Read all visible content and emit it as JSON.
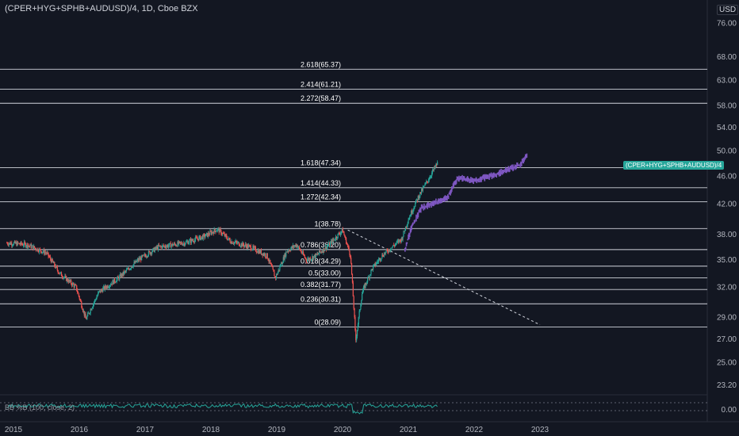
{
  "header": {
    "title": "(CPER+HYG+SPHB+AUDUSD)/4, 1D, Cboe BZX",
    "currency": "USD"
  },
  "indicator": {
    "label": "BB %B (100, close, 2)",
    "value_tick": "0.00"
  },
  "last_price_tag": "(CPER+HYG+SPHB+AUDUSD)/4",
  "colors": {
    "background": "#131722",
    "candle_up": "#26a69a",
    "candle_down": "#ef5350",
    "projection": "#7e57c2",
    "fib_line": "#d1d4dc",
    "indicator_line": "#26a69a"
  },
  "chart_data": {
    "type": "candlestick",
    "y_scale": "log",
    "ylim": [
      22.5,
      82
    ],
    "y_ticks": [
      "76.00",
      "68.00",
      "63.00",
      "58.00",
      "54.00",
      "50.00",
      "46.00",
      "42.00",
      "38.00",
      "35.00",
      "32.00",
      "29.00",
      "27.00",
      "25.00",
      "23.20"
    ],
    "x_ticks": [
      "2015",
      "2016",
      "2017",
      "2018",
      "2019",
      "2020",
      "2021",
      "2022",
      "2023"
    ],
    "price_path": [
      {
        "t": 2014.9,
        "v": 37.0
      },
      {
        "t": 2015.2,
        "v": 36.8
      },
      {
        "t": 2015.5,
        "v": 35.8
      },
      {
        "t": 2015.7,
        "v": 33.5
      },
      {
        "t": 2015.95,
        "v": 32.0
      },
      {
        "t": 2016.1,
        "v": 28.8
      },
      {
        "t": 2016.3,
        "v": 31.5
      },
      {
        "t": 2016.6,
        "v": 33.0
      },
      {
        "t": 2016.9,
        "v": 35.0
      },
      {
        "t": 2017.2,
        "v": 36.5
      },
      {
        "t": 2017.6,
        "v": 37.0
      },
      {
        "t": 2017.9,
        "v": 37.8
      },
      {
        "t": 2018.1,
        "v": 38.7
      },
      {
        "t": 2018.3,
        "v": 37.2
      },
      {
        "t": 2018.6,
        "v": 36.5
      },
      {
        "t": 2018.85,
        "v": 35.5
      },
      {
        "t": 2018.98,
        "v": 33.0
      },
      {
        "t": 2019.15,
        "v": 36.0
      },
      {
        "t": 2019.3,
        "v": 36.8
      },
      {
        "t": 2019.45,
        "v": 35.0
      },
      {
        "t": 2019.6,
        "v": 35.5
      },
      {
        "t": 2019.8,
        "v": 36.8
      },
      {
        "t": 2020.0,
        "v": 38.6
      },
      {
        "t": 2020.12,
        "v": 35.5
      },
      {
        "t": 2020.2,
        "v": 26.8
      },
      {
        "t": 2020.3,
        "v": 31.5
      },
      {
        "t": 2020.45,
        "v": 34.0
      },
      {
        "t": 2020.6,
        "v": 35.5
      },
      {
        "t": 2020.75,
        "v": 36.5
      },
      {
        "t": 2020.9,
        "v": 37.5
      },
      {
        "t": 2021.0,
        "v": 40.0
      },
      {
        "t": 2021.15,
        "v": 43.0
      },
      {
        "t": 2021.3,
        "v": 45.5
      },
      {
        "t": 2021.45,
        "v": 48.2
      }
    ],
    "projection_path": [
      {
        "t": 2020.95,
        "v": 36.2
      },
      {
        "t": 2021.05,
        "v": 39.0
      },
      {
        "t": 2021.2,
        "v": 41.5
      },
      {
        "t": 2021.4,
        "v": 42.2
      },
      {
        "t": 2021.6,
        "v": 43.0
      },
      {
        "t": 2021.75,
        "v": 45.8
      },
      {
        "t": 2022.0,
        "v": 45.4
      },
      {
        "t": 2022.3,
        "v": 46.2
      },
      {
        "t": 2022.5,
        "v": 47.0
      },
      {
        "t": 2022.7,
        "v": 47.8
      },
      {
        "t": 2022.8,
        "v": 49.3
      }
    ],
    "fibonacci": [
      {
        "label": "2.618(65.37)",
        "value": 65.37
      },
      {
        "label": "2.414(61.21)",
        "value": 61.21
      },
      {
        "label": "2.272(58.47)",
        "value": 58.47
      },
      {
        "label": "1.618(47.34)",
        "value": 47.34
      },
      {
        "label": "1.414(44.33)",
        "value": 44.33
      },
      {
        "label": "1.272(42.34)",
        "value": 42.34
      },
      {
        "label": "1(38.78)",
        "value": 38.78
      },
      {
        "label": "0.786(36.20)",
        "value": 36.2
      },
      {
        "label": "0.618(34.29)",
        "value": 34.29
      },
      {
        "label": "0.5(33.00)",
        "value": 33.0
      },
      {
        "label": "0.382(31.77)",
        "value": 31.77
      },
      {
        "label": "0.236(30.31)",
        "value": 30.31
      },
      {
        "label": "0(28.09)",
        "value": 28.09
      }
    ],
    "trendline": {
      "from": {
        "t": 2020.08,
        "v": 38.6
      },
      "to": {
        "t": 2023.0,
        "v": 28.3
      }
    }
  }
}
